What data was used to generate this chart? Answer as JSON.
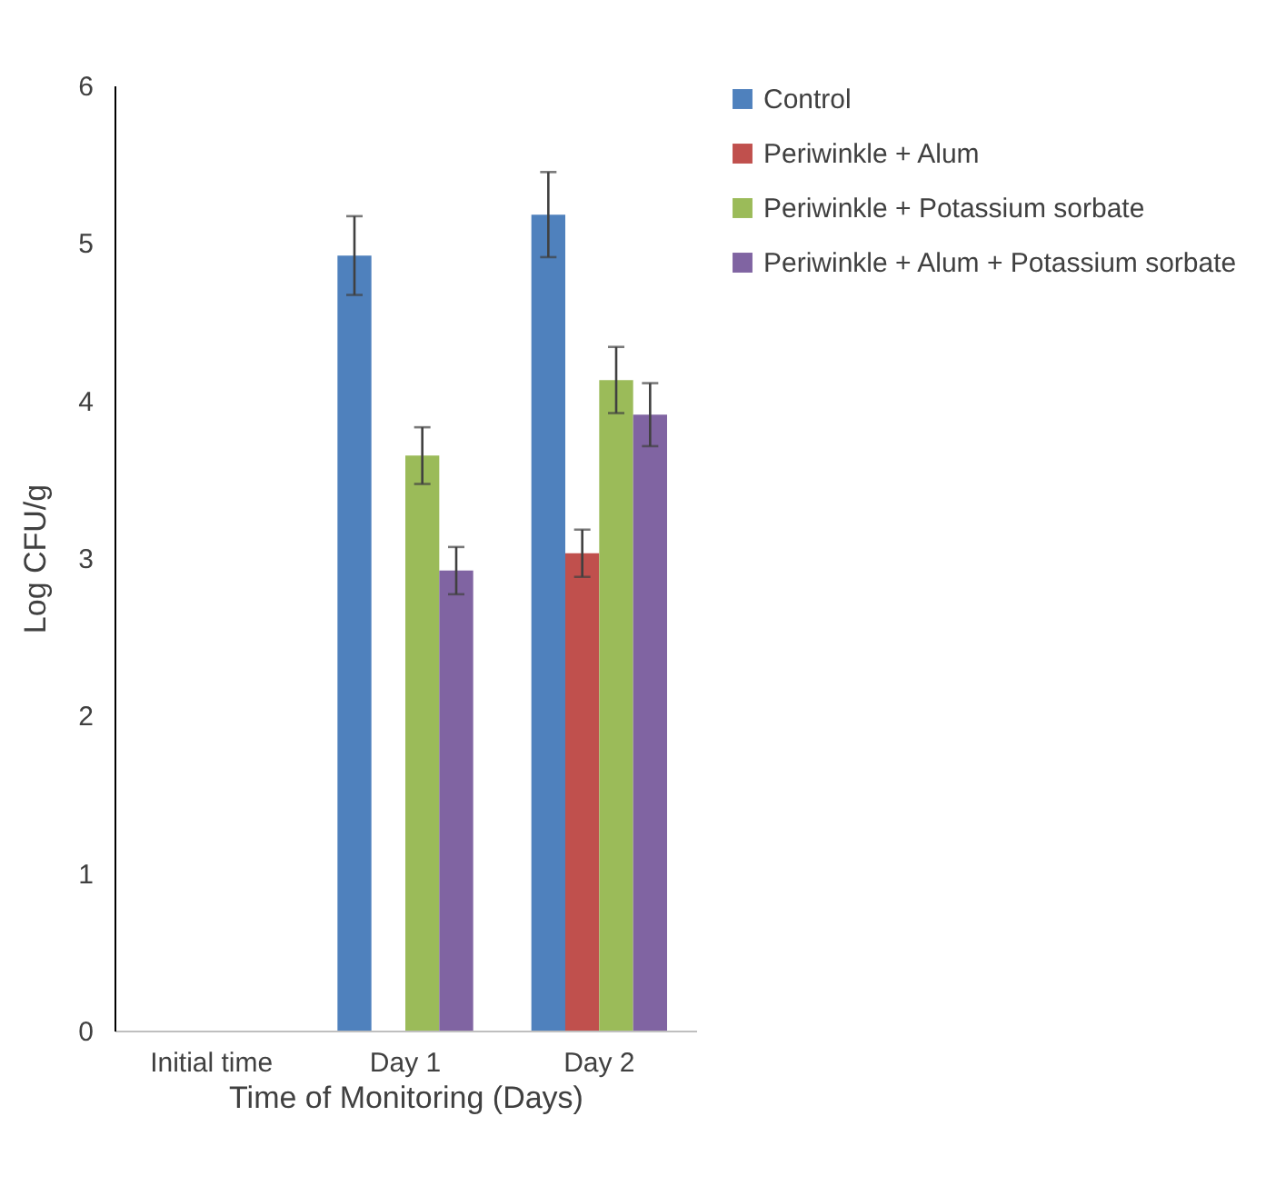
{
  "chart_data": {
    "type": "bar",
    "xlabel": "Time of Monitoring (Days)",
    "ylabel": "Log CFU/g",
    "categories": [
      "Initial time",
      "Day 1",
      "Day 2"
    ],
    "series": [
      {
        "name": "Control",
        "color": "#4f81bd",
        "values": [
          0,
          4.92,
          5.18
        ],
        "errors": [
          null,
          0.25,
          0.27
        ]
      },
      {
        "name": "Periwinkle + Alum",
        "color": "#c0504d",
        "values": [
          0,
          0,
          3.03
        ],
        "errors": [
          null,
          null,
          0.15
        ]
      },
      {
        "name": "Periwinkle + Potassium sorbate",
        "color": "#9bbb59",
        "values": [
          0,
          3.65,
          4.13
        ],
        "errors": [
          null,
          0.18,
          0.21
        ]
      },
      {
        "name": "Periwinkle + Alum + Potassium sorbate",
        "color": "#8064a2",
        "values": [
          0,
          2.92,
          3.91
        ],
        "errors": [
          null,
          0.15,
          0.2
        ]
      }
    ],
    "ylim": [
      0,
      6
    ],
    "yticks": [
      0,
      1,
      2,
      3,
      4,
      5,
      6
    ],
    "grid": false,
    "legend": "top right"
  }
}
